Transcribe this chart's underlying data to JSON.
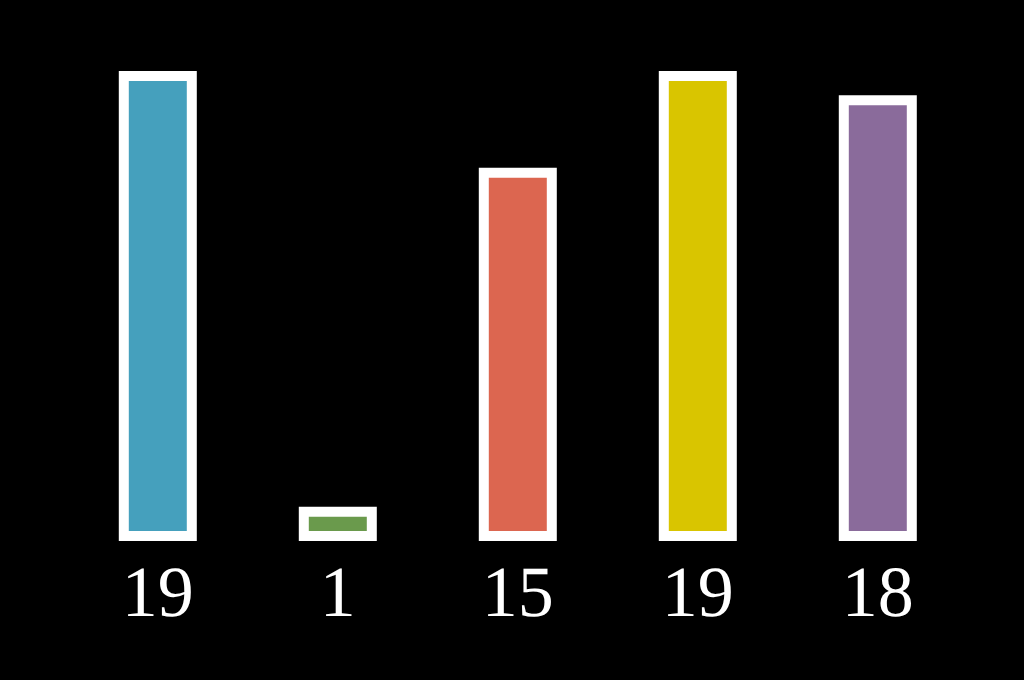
{
  "chart_data": {
    "type": "bar",
    "categories": [
      null,
      null,
      null,
      null,
      null
    ],
    "values": [
      19,
      1,
      15,
      19,
      18
    ],
    "colors": [
      "#45a0bd",
      "#6a9a4c",
      "#dc6650",
      "#d9c500",
      "#8a6b9b"
    ],
    "data_labels": true
  }
}
